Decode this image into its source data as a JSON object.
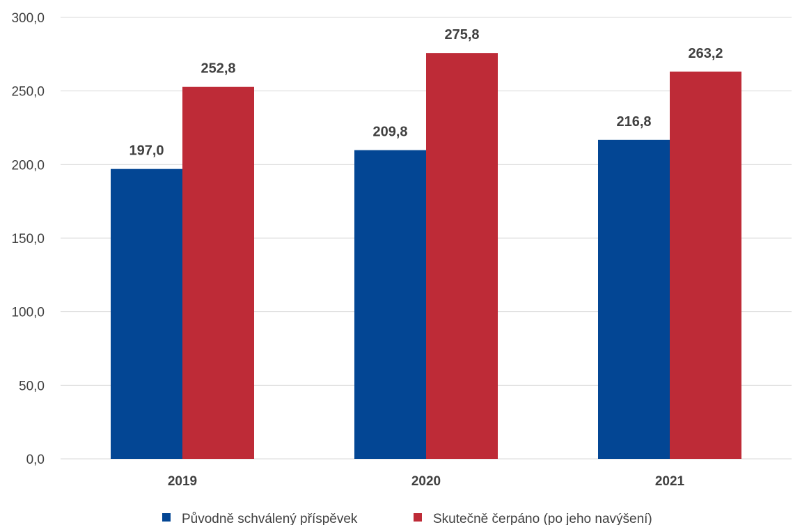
{
  "chart_data": {
    "type": "bar",
    "categories": [
      "2019",
      "2020",
      "2021"
    ],
    "series": [
      {
        "name": "Původně schválený příspěvek",
        "values": [
          197.0,
          209.8,
          216.8
        ],
        "labels": [
          "197,0",
          "209,8",
          "216,8"
        ],
        "color": "#034694"
      },
      {
        "name": "Skutečně čerpáno (po jeho navýšení)",
        "values": [
          252.8,
          275.8,
          263.2
        ],
        "labels": [
          "252,8",
          "275,8",
          "263,2"
        ],
        "color": "#be2b37"
      }
    ],
    "y_ticks": [
      "0,0",
      "50,0",
      "100,0",
      "150,0",
      "200,0",
      "250,0",
      "300,0"
    ],
    "y_tick_values": [
      0,
      50,
      100,
      150,
      200,
      250,
      300
    ],
    "ylim": [
      0,
      300
    ],
    "grid": true,
    "legend_position": "bottom",
    "title": "",
    "xlabel": "",
    "ylabel": ""
  }
}
